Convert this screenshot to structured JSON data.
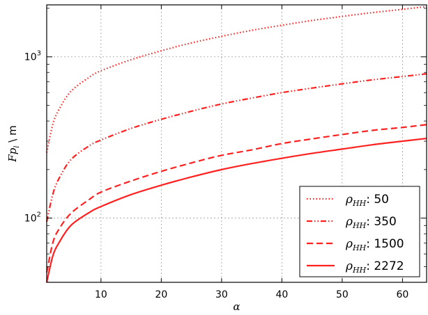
{
  "chart_data": {
    "type": "line",
    "xlabel": "α",
    "ylabel_main": "Fp",
    "ylabel_sub": "l",
    "ylabel_unit": " \\ m",
    "xlim": [
      1,
      64
    ],
    "ylim": [
      40,
      2100
    ],
    "yscale": "log",
    "grid": true,
    "x_ticks": [
      10,
      20,
      30,
      40,
      50,
      60
    ],
    "x_tick_labels": [
      "10",
      "20",
      "30",
      "40",
      "50",
      "60"
    ],
    "y_ticks": [
      100,
      1000
    ],
    "y_tick_labels": [
      {
        "base": "10",
        "exp": "2"
      },
      {
        "base": "10",
        "exp": "3"
      }
    ],
    "legend_position": "lower-right",
    "color": "#ff2020",
    "series": [
      {
        "name": "50",
        "legend_prefix": "ρ",
        "legend_sub": "HH",
        "legend_label": ": 50",
        "dash": "dotted",
        "x": [
          1,
          2,
          3,
          5,
          8,
          10,
          15,
          20,
          25,
          30,
          35,
          40,
          45,
          50,
          55,
          60,
          64
        ],
        "y": [
          255,
          380,
          470,
          610,
          745,
          820,
          960,
          1090,
          1220,
          1340,
          1460,
          1570,
          1680,
          1780,
          1880,
          1970,
          2050
        ]
      },
      {
        "name": "350",
        "legend_prefix": "ρ",
        "legend_sub": "HH",
        "legend_label": ": 350",
        "dash": "dashdot",
        "x": [
          1,
          2,
          3,
          5,
          8,
          10,
          15,
          20,
          25,
          30,
          35,
          40,
          45,
          50,
          55,
          60,
          64
        ],
        "y": [
          95,
          140,
          175,
          230,
          280,
          305,
          360,
          410,
          460,
          510,
          555,
          600,
          640,
          680,
          720,
          755,
          785
        ]
      },
      {
        "name": "1500",
        "legend_prefix": "ρ",
        "legend_sub": "HH",
        "legend_label": ": 1500",
        "dash": "dashed",
        "x": [
          1,
          2,
          3,
          5,
          8,
          10,
          15,
          20,
          25,
          30,
          35,
          40,
          45,
          50,
          55,
          60,
          64
        ],
        "y": [
          46,
          70,
          85,
          107,
          130,
          145,
          170,
          195,
          220,
          245,
          265,
          290,
          310,
          330,
          350,
          365,
          380
        ]
      },
      {
        "name": "2272",
        "legend_prefix": "ρ",
        "legend_sub": "HH",
        "legend_label": ": 2272",
        "dash": "solid",
        "x": [
          1,
          2,
          3,
          5,
          8,
          10,
          15,
          20,
          25,
          30,
          35,
          40,
          45,
          50,
          55,
          60,
          64
        ],
        "y": [
          40,
          58,
          70,
          90,
          108,
          118,
          140,
          160,
          180,
          200,
          218,
          235,
          252,
          268,
          285,
          300,
          312
        ]
      }
    ]
  }
}
